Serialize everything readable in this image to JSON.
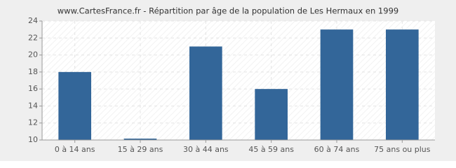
{
  "chart_data": {
    "type": "bar",
    "title": "www.CartesFrance.fr - Répartition par âge de la population de Les Hermaux en 1999",
    "categories": [
      "0 à 14 ans",
      "15 à 29 ans",
      "30 à 44 ans",
      "45 à 59 ans",
      "60 à 74 ans",
      "75 ans ou plus"
    ],
    "values": [
      18,
      10,
      21,
      16,
      23,
      23
    ],
    "color": "#336699",
    "ylim": [
      10,
      24
    ],
    "yticks": [
      10,
      12,
      14,
      16,
      18,
      20,
      22,
      24
    ],
    "grid": true
  }
}
